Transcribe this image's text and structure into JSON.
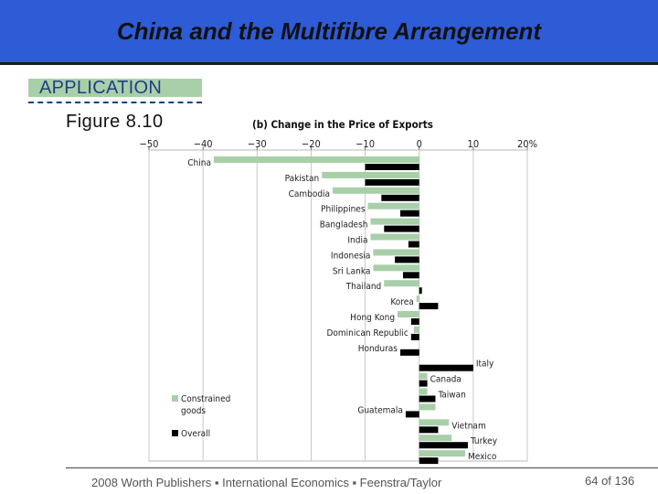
{
  "slide": {
    "title": "China and the Multifibre Arrangement",
    "section_tag": "APPLICATION",
    "figure_label": "Figure  8.10",
    "footer": "2008 Worth Publishers ▪ International Economics ▪ Feenstra/Taylor",
    "page_number": "64 of 136"
  },
  "colors": {
    "title_bg": "#2e5bd6",
    "constrained": "#a9cfa9",
    "overall": "#000000",
    "tag_bg": "#a9cfa9"
  },
  "chart_data": {
    "type": "bar",
    "orientation": "horizontal",
    "title": "(b) Change in the Price of Exports",
    "x_ticks": [
      "−50",
      "−40",
      "−30",
      "−20",
      "−10",
      "0",
      "10",
      "20%"
    ],
    "x_tick_values": [
      -50,
      -40,
      -30,
      -20,
      -10,
      0,
      10,
      20
    ],
    "xlim": [
      -50,
      20
    ],
    "grid": true,
    "legend_position": "bottom-left",
    "categories": [
      "China",
      "Pakistan",
      "Cambodia",
      "Philippines",
      "Bangladesh",
      "India",
      "Indonesia",
      "Sri Lanka",
      "Thailand",
      "Korea",
      "Hong Kong",
      "Dominican Republic",
      "Honduras",
      "Italy",
      "Canada",
      "Taiwan",
      "Guatemala",
      "Vietnam",
      "Turkey",
      "Mexico"
    ],
    "series": [
      {
        "name": "Constrained goods",
        "values": [
          -38,
          -18,
          -16,
          -9.5,
          -9,
          -9,
          -8.5,
          -8.5,
          -6.5,
          -0.5,
          -4,
          -1,
          0,
          0,
          1.5,
          1.5,
          3,
          5.5,
          6,
          8.5
        ]
      },
      {
        "name": "Overall",
        "values": [
          -10,
          -10,
          -7,
          -3.5,
          -6.5,
          -2,
          -4.5,
          -3,
          0.5,
          3.5,
          -1.5,
          -1.5,
          -3.5,
          10,
          1.5,
          3,
          -2.5,
          3.5,
          9,
          3.5
        ]
      }
    ]
  }
}
